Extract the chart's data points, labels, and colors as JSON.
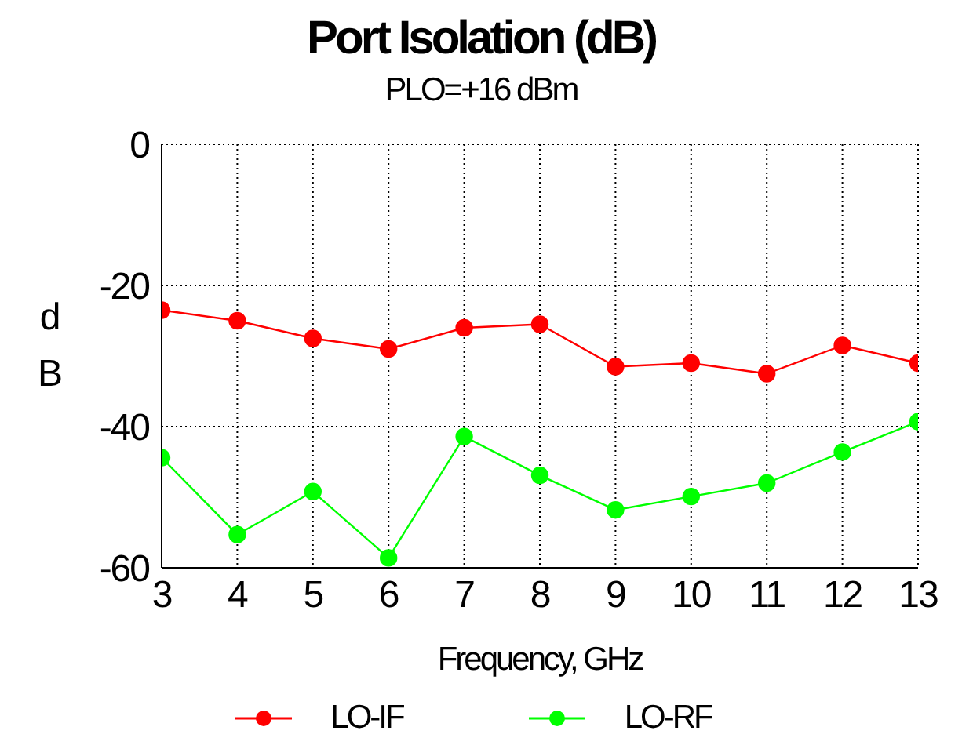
{
  "chart_data": {
    "type": "line",
    "title": "Port Isolation (dB)",
    "subtitle": "PLO=+16 dBm",
    "xlabel": "Frequency, GHz",
    "ylabel": "dB",
    "x": [
      3,
      4,
      5,
      6,
      7,
      8,
      9,
      10,
      11,
      12,
      13
    ],
    "xlim": [
      3,
      13
    ],
    "xticks": [
      3,
      4,
      5,
      6,
      7,
      8,
      9,
      10,
      11,
      12,
      13
    ],
    "ylim": [
      -60,
      0
    ],
    "yticks": [
      -60,
      -40,
      -20,
      0
    ],
    "grid": true,
    "legend": "bottom",
    "marker": "circle",
    "line_style": "solid",
    "series": [
      {
        "name": "LO-IF",
        "color": "#ff0000",
        "values": [
          -23.5,
          -25,
          -27.5,
          -29,
          -26,
          -25.5,
          -31.5,
          -31,
          -32.5,
          -28.5,
          -31
        ]
      },
      {
        "name": "LO-RF",
        "color": "#00ff00",
        "values": [
          -44.4,
          -55.3,
          -49.2,
          -58.6,
          -41.4,
          -46.9,
          -51.8,
          -49.9,
          -48,
          -43.6,
          -39.3
        ]
      }
    ]
  }
}
